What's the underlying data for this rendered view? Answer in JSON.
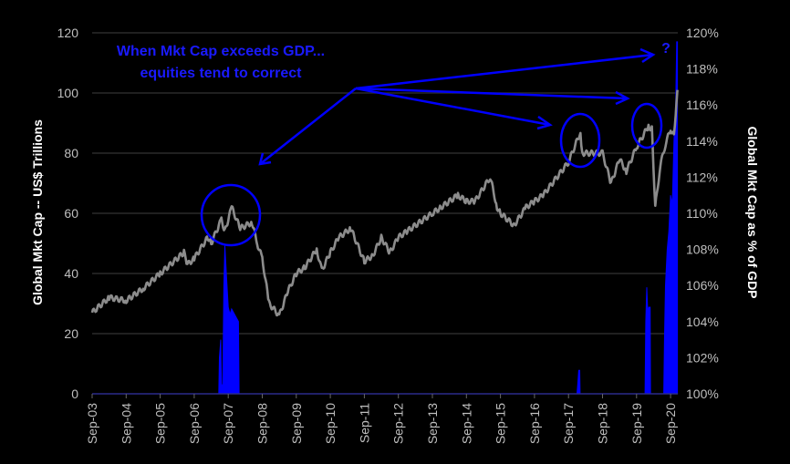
{
  "chart_data": {
    "type": "line",
    "title": "",
    "x_tick_labels": [
      "Sep-03",
      "Sep-04",
      "Sep-05",
      "Sep-06",
      "Sep-07",
      "Sep-08",
      "Sep-09",
      "Sep-10",
      "Sep-11",
      "Sep-12",
      "Sep-13",
      "Sep-14",
      "Sep-15",
      "Sep-16",
      "Sep-17",
      "Sep-18",
      "Sep-19",
      "Sep-20"
    ],
    "x_unit": "years since Sep-03",
    "xlim": [
      0,
      17.2
    ],
    "ylabel_left": "Global Mkt Cap -- US$ Trillions",
    "ylabel_right": "Global Mkt Cap as % of GDP",
    "ylim_left": [
      0,
      120
    ],
    "ylim_right": [
      100,
      120
    ],
    "y_ticks_left": [
      "0",
      "20",
      "40",
      "60",
      "80",
      "100",
      "120"
    ],
    "y_ticks_right": [
      "100%",
      "102%",
      "104%",
      "106%",
      "108%",
      "110%",
      "112%",
      "114%",
      "116%",
      "118%",
      "120%"
    ],
    "grid": true,
    "series": [
      {
        "name": "Global Mkt Cap (US$ Trillions)",
        "axis": "left",
        "type": "line",
        "color": "#8c8c8c",
        "points": [
          [
            0,
            27
          ],
          [
            0.5,
            32
          ],
          [
            1,
            31
          ],
          [
            1.5,
            35
          ],
          [
            2,
            40
          ],
          [
            2.7,
            47
          ],
          [
            2.8,
            43
          ],
          [
            3,
            45
          ],
          [
            3.4,
            52
          ],
          [
            3.5,
            50
          ],
          [
            3.8,
            58
          ],
          [
            3.9,
            54
          ],
          [
            4.1,
            62
          ],
          [
            4.35,
            55
          ],
          [
            4.7,
            57
          ],
          [
            4.85,
            50
          ],
          [
            5,
            45
          ],
          [
            5.2,
            30
          ],
          [
            5.5,
            26
          ],
          [
            5.75,
            34
          ],
          [
            6,
            40
          ],
          [
            6.25,
            42
          ],
          [
            6.6,
            48
          ],
          [
            6.75,
            41
          ],
          [
            7,
            47
          ],
          [
            7.25,
            52
          ],
          [
            7.6,
            55
          ],
          [
            8,
            44
          ],
          [
            8.25,
            46
          ],
          [
            8.5,
            52
          ],
          [
            8.75,
            47
          ],
          [
            9,
            52
          ],
          [
            9.25,
            54
          ],
          [
            10,
            60
          ],
          [
            10.25,
            62
          ],
          [
            10.75,
            66
          ],
          [
            11,
            64
          ],
          [
            11.25,
            64
          ],
          [
            11.7,
            72
          ],
          [
            11.9,
            62
          ],
          [
            12,
            60
          ],
          [
            12.4,
            56
          ],
          [
            12.75,
            62
          ],
          [
            13,
            64
          ],
          [
            13.25,
            66
          ],
          [
            14,
            77
          ],
          [
            14.35,
            87
          ],
          [
            14.4,
            80
          ],
          [
            15,
            80
          ],
          [
            15.25,
            70
          ],
          [
            15.5,
            78
          ],
          [
            15.7,
            74
          ],
          [
            16,
            82
          ],
          [
            16.35,
            89
          ],
          [
            16.45,
            88
          ],
          [
            16.55,
            62
          ],
          [
            16.7,
            76
          ],
          [
            16.85,
            83
          ],
          [
            17,
            88
          ],
          [
            17.1,
            86
          ],
          [
            17.2,
            101
          ]
        ]
      },
      {
        "name": "Global Mkt Cap as % of GDP (above 100%)",
        "axis": "right",
        "type": "area",
        "color": "#0000ff",
        "points": [
          [
            0,
            100
          ],
          [
            3.72,
            100
          ],
          [
            3.74,
            102
          ],
          [
            3.78,
            103
          ],
          [
            3.8,
            100.5
          ],
          [
            3.84,
            100.5
          ],
          [
            3.87,
            106
          ],
          [
            3.9,
            108.2
          ],
          [
            3.95,
            106.5
          ],
          [
            4.0,
            104.8
          ],
          [
            4.05,
            104.4
          ],
          [
            4.1,
            104.7
          ],
          [
            4.3,
            104
          ],
          [
            4.32,
            100
          ],
          [
            14.25,
            100
          ],
          [
            14.27,
            100.5
          ],
          [
            14.3,
            101.3
          ],
          [
            14.33,
            101.3
          ],
          [
            14.34,
            100
          ],
          [
            16.25,
            100
          ],
          [
            16.27,
            104
          ],
          [
            16.3,
            105.9
          ],
          [
            16.33,
            104.5
          ],
          [
            16.36,
            104.8
          ],
          [
            16.4,
            104.8
          ],
          [
            16.41,
            100
          ],
          [
            16.8,
            100
          ],
          [
            16.82,
            103
          ],
          [
            16.85,
            106
          ],
          [
            16.9,
            108
          ],
          [
            16.95,
            109
          ],
          [
            17.0,
            111
          ],
          [
            17.05,
            110.5
          ],
          [
            17.1,
            114
          ],
          [
            17.15,
            116
          ],
          [
            17.18,
            119.5
          ],
          [
            17.2,
            119.5
          ],
          [
            17.2,
            100
          ]
        ]
      }
    ],
    "annotations": {
      "line1": "When Mkt Cap exceeds GDP...",
      "line2": "equities tend to correct",
      "question": "?"
    }
  }
}
